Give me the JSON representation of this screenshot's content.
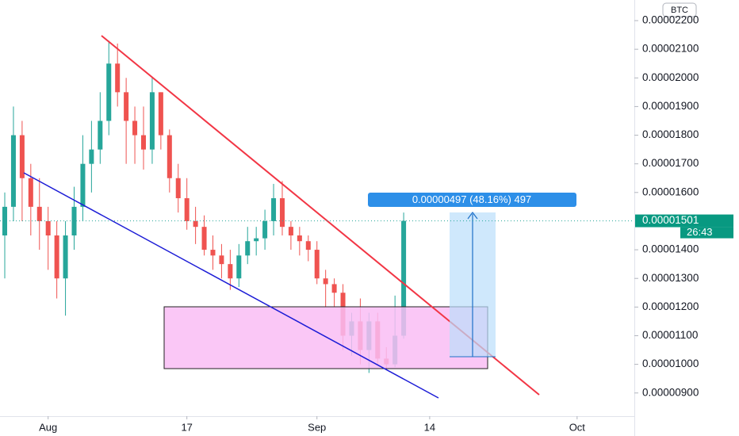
{
  "chart_data": {
    "type": "candlestick",
    "currency": "BTC",
    "categories": [
      null,
      null,
      null,
      null,
      null,
      null,
      null,
      null,
      null,
      null,
      null,
      null,
      null,
      null,
      null,
      null,
      null,
      null,
      null,
      null,
      null,
      null,
      null,
      null,
      null,
      null,
      null,
      null,
      null,
      null,
      null,
      null,
      null,
      null,
      null,
      null,
      null,
      null,
      null,
      null,
      null,
      null,
      null,
      null,
      null,
      null,
      null
    ],
    "open": [
      1.45e-05,
      1.55e-05,
      1.8e-05,
      1.65e-05,
      1.55e-05,
      1.5e-05,
      1.45e-05,
      1.3e-05,
      1.45e-05,
      1.55e-05,
      1.7e-05,
      1.75e-05,
      1.85e-05,
      2.05e-05,
      1.95e-05,
      1.85e-05,
      1.8e-05,
      1.75e-05,
      1.95e-05,
      1.8e-05,
      1.65e-05,
      1.58e-05,
      1.5e-05,
      1.48e-05,
      1.4e-05,
      1.38e-05,
      1.35e-05,
      1.3e-05,
      1.38e-05,
      1.43e-05,
      1.44e-05,
      1.5e-05,
      1.58e-05,
      1.48e-05,
      1.45e-05,
      1.43e-05,
      1.4e-05,
      1.3e-05,
      1.28e-05,
      1.25e-05,
      1.1e-05,
      1.15e-05,
      1.05e-05,
      1.15e-05,
      1.02e-05,
      1e-05,
      1.1e-05
    ],
    "high": [
      1.6e-05,
      1.9e-05,
      1.85e-05,
      1.7e-05,
      1.65e-05,
      1.55e-05,
      1.5e-05,
      1.5e-05,
      1.62e-05,
      1.8e-05,
      1.85e-05,
      1.95e-05,
      2.13e-05,
      2.12e-05,
      2e-05,
      1.9e-05,
      1.9e-05,
      2e-05,
      1.95e-05,
      1.82e-05,
      1.7e-05,
      1.65e-05,
      1.55e-05,
      1.52e-05,
      1.45e-05,
      1.42e-05,
      1.4e-05,
      1.42e-05,
      1.48e-05,
      1.48e-05,
      1.54e-05,
      1.63e-05,
      1.64e-05,
      1.5e-05,
      1.48e-05,
      1.45e-05,
      1.43e-05,
      1.33e-05,
      1.3e-05,
      1.28e-05,
      1.18e-05,
      1.23e-05,
      1.18e-05,
      1.18e-05,
      1.06e-05,
      1.24e-05,
      1.53e-05
    ],
    "low": [
      1.3e-05,
      1.5e-05,
      1.5e-05,
      1.45e-05,
      1.4e-05,
      1.33e-05,
      1.23e-05,
      1.17e-05,
      1.4e-05,
      1.5e-05,
      1.6e-05,
      1.7e-05,
      1.8e-05,
      1.9e-05,
      1.7e-05,
      1.7e-05,
      1.68e-05,
      1.7e-05,
      1.75e-05,
      1.6e-05,
      1.53e-05,
      1.47e-05,
      1.42e-05,
      1.38e-05,
      1.33e-05,
      1.3e-05,
      1.26e-05,
      1.27e-05,
      1.35e-05,
      1.38e-05,
      1.4e-05,
      1.45e-05,
      1.45e-05,
      1.4e-05,
      1.38e-05,
      1.36e-05,
      1.28e-05,
      1.2e-05,
      1.2e-05,
      1.05e-05,
      1.03e-05,
      1e-05,
      9.7e-06,
      1e-05,
      9.85e-06,
      9.9e-06,
      1.09e-05
    ],
    "close": [
      1.55e-05,
      1.8e-05,
      1.65e-05,
      1.55e-05,
      1.5e-05,
      1.45e-05,
      1.3e-05,
      1.45e-05,
      1.55e-05,
      1.7e-05,
      1.75e-05,
      1.85e-05,
      2.05e-05,
      1.95e-05,
      1.85e-05,
      1.8e-05,
      1.75e-05,
      1.95e-05,
      1.8e-05,
      1.65e-05,
      1.58e-05,
      1.5e-05,
      1.48e-05,
      1.4e-05,
      1.38e-05,
      1.35e-05,
      1.3e-05,
      1.38e-05,
      1.43e-05,
      1.44e-05,
      1.5e-05,
      1.58e-05,
      1.48e-05,
      1.45e-05,
      1.43e-05,
      1.4e-05,
      1.3e-05,
      1.28e-05,
      1.25e-05,
      1.1e-05,
      1.15e-05,
      1.05e-05,
      1.15e-05,
      1.02e-05,
      1e-05,
      1.1e-05,
      1.501e-05
    ],
    "up_color": "#26a69a",
    "down_color": "#ef5350",
    "xlim": [
      -0.55,
      72.6
    ],
    "xticks": [
      {
        "value": 5,
        "label": "Aug"
      },
      {
        "value": 21,
        "label": "17"
      },
      {
        "value": 36,
        "label": "Sep"
      },
      {
        "value": 49,
        "label": "14"
      },
      {
        "value": 66,
        "label": "Oct"
      }
    ],
    "ylim": [
      8.19e-06,
      2.272e-05
    ],
    "yticks": [
      {
        "value": 2.2e-05,
        "label": "0.00002200"
      },
      {
        "value": 2.1e-05,
        "label": "0.00002100"
      },
      {
        "value": 2e-05,
        "label": "0.00002000"
      },
      {
        "value": 1.9e-05,
        "label": "0.00001900"
      },
      {
        "value": 1.8e-05,
        "label": "0.00001800"
      },
      {
        "value": 1.7e-05,
        "label": "0.00001700"
      },
      {
        "value": 1.6e-05,
        "label": "0.00001600"
      },
      {
        "value": 1.4e-05,
        "label": "0.00001400"
      },
      {
        "value": 1.3e-05,
        "label": "0.00001300"
      },
      {
        "value": 1.2e-05,
        "label": "0.00001200"
      },
      {
        "value": 1.1e-05,
        "label": "0.00001100"
      },
      {
        "value": 1e-05,
        "label": "0.00001000"
      },
      {
        "value": 9e-06,
        "label": "0.00000900"
      }
    ],
    "last_price": {
      "value": 1.501e-05,
      "label": "0.00001501"
    },
    "countdown": "26:43",
    "measure_label": "0.00000497 (48.16%) 497"
  }
}
